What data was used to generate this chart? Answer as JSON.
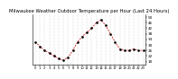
{
  "title": "Milwaukee Weather Outdoor Temperature per Hour (Last 24 Hours)",
  "hours": [
    0,
    1,
    2,
    3,
    4,
    5,
    6,
    7,
    8,
    9,
    10,
    11,
    12,
    13,
    14,
    15,
    16,
    17,
    18,
    19,
    20,
    21,
    22,
    23
  ],
  "temps": [
    32,
    29,
    26,
    24,
    22,
    20,
    19,
    21,
    26,
    32,
    36,
    39,
    42,
    46,
    48,
    44,
    38,
    32,
    27,
    26,
    26,
    27,
    26,
    26
  ],
  "line_color": "#cc0000",
  "marker_color": "#000000",
  "bg_color": "#ffffff",
  "grid_color": "#888888",
  "ylim_min": 16,
  "ylim_max": 52,
  "ytick_vals": [
    18,
    22,
    26,
    30,
    34,
    38,
    42,
    46,
    50
  ],
  "title_fontsize": 3.8,
  "tick_fontsize": 3.0,
  "ylabel_side": "right"
}
